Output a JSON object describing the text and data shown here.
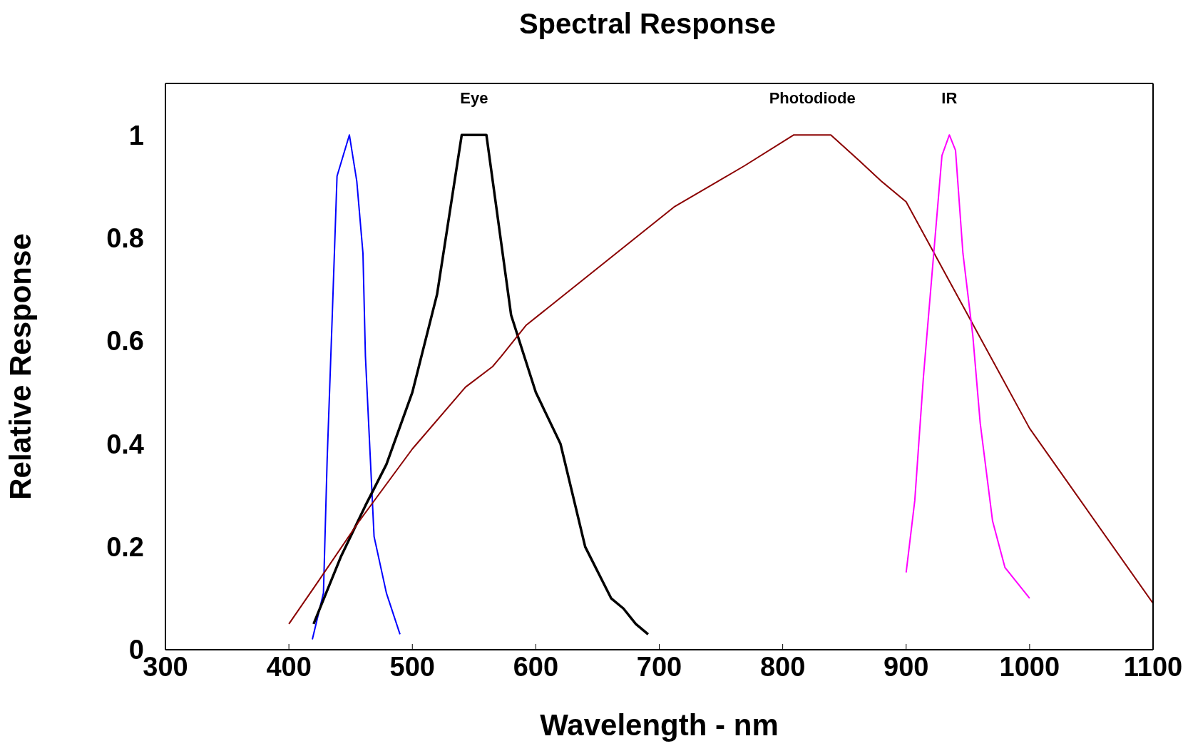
{
  "chart_data": {
    "type": "line",
    "title": "Spectral Response",
    "xlabel": "Wavelength - nm",
    "ylabel": "Relative Response",
    "xlim": [
      300,
      1100
    ],
    "xticks": [
      300,
      400,
      500,
      600,
      700,
      800,
      900,
      1000,
      1100
    ],
    "ylim": [
      0,
      1.1
    ],
    "yticks": [
      0,
      0.2,
      0.4,
      0.6,
      0.8,
      1
    ],
    "marker": "none",
    "line_style": "solid",
    "series": [
      {
        "color": "#0000ff",
        "x": [
          419,
          428,
          431,
          435,
          439,
          449,
          455,
          460,
          462,
          466,
          469,
          479,
          490
        ],
        "values": [
          0.02,
          0.11,
          0.37,
          0.64,
          0.92,
          1.0,
          0.91,
          0.77,
          0.57,
          0.37,
          0.22,
          0.11,
          0.03
        ]
      },
      {
        "name": "Eye",
        "color": "#000000",
        "x": [
          420,
          442,
          462,
          479,
          500,
          520,
          540,
          560,
          580,
          600,
          620,
          640,
          661,
          671,
          681,
          691
        ],
        "values": [
          0.05,
          0.18,
          0.28,
          0.36,
          0.5,
          0.69,
          1.0,
          1.0,
          0.65,
          0.5,
          0.4,
          0.2,
          0.1,
          0.08,
          0.05,
          0.03
        ]
      },
      {
        "name": "Photodiode",
        "color": "#8b0000",
        "x": [
          400,
          423,
          457,
          500,
          543,
          565,
          572,
          592,
          712,
          769,
          809,
          839,
          862,
          880,
          900,
          1000,
          1100
        ],
        "values": [
          0.05,
          0.13,
          0.25,
          0.39,
          0.51,
          0.55,
          0.57,
          0.63,
          0.86,
          0.94,
          1.0,
          1.0,
          0.95,
          0.91,
          0.87,
          0.43,
          0.09
        ]
      },
      {
        "name": "IR",
        "color": "#ff00ff",
        "x": [
          900,
          907,
          914,
          922,
          929,
          935,
          940,
          946,
          954,
          960,
          970,
          980,
          1000
        ],
        "values": [
          0.15,
          0.29,
          0.53,
          0.76,
          0.96,
          1.0,
          0.97,
          0.77,
          0.61,
          0.44,
          0.25,
          0.16,
          0.1
        ]
      }
    ]
  }
}
